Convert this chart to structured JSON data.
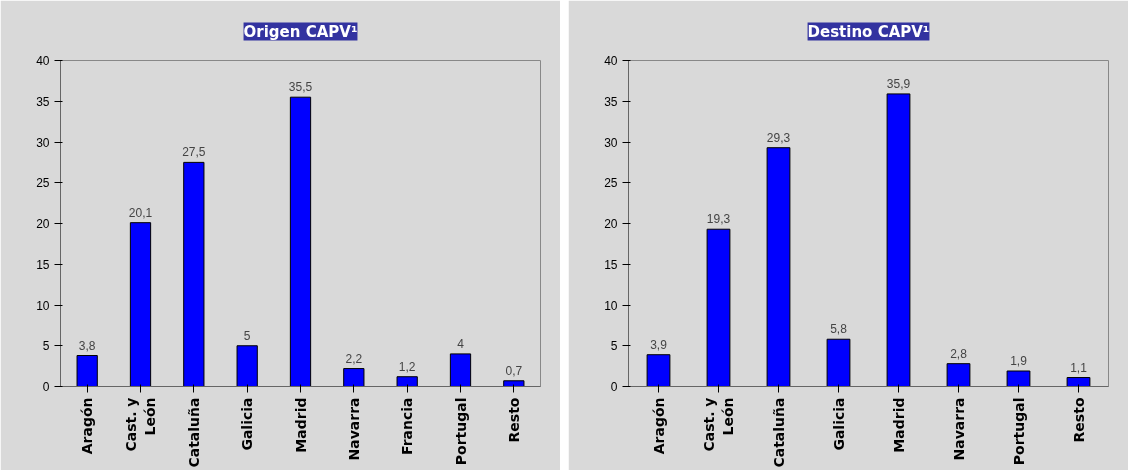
{
  "chart_data": [
    {
      "type": "bar",
      "title": "Origen CAPV¹",
      "categories": [
        "Aragón",
        "Cast. y\nLeón",
        "Cataluña",
        "Galicia",
        "Madrid",
        "Navarra",
        "Francia",
        "Portugal",
        "Resto"
      ],
      "values": [
        3.8,
        20.1,
        27.5,
        5,
        35.5,
        2.2,
        1.2,
        4,
        0.7
      ],
      "value_labels": [
        "3,8",
        "20,1",
        "27,5",
        "5",
        "35,5",
        "2,2",
        "1,2",
        "4",
        "0,7"
      ],
      "color": "#0000ff",
      "ylim": [
        0,
        40
      ],
      "yticks": [
        0,
        5,
        10,
        15,
        20,
        25,
        30,
        35,
        40
      ],
      "grid": false
    },
    {
      "type": "bar",
      "title": "Destino CAPV¹",
      "categories": [
        "Aragón",
        "Cast. y\nLeón",
        "Cataluña",
        "Galicia",
        "Madrid",
        "Navarra",
        "Portugal",
        "Resto"
      ],
      "values": [
        3.9,
        19.3,
        29.3,
        5.8,
        35.9,
        2.8,
        1.9,
        1.1
      ],
      "value_labels": [
        "3,9",
        "19,3",
        "29,3",
        "5,8",
        "35,9",
        "2,8",
        "1,9",
        "1,1"
      ],
      "color": "#0000ff",
      "ylim": [
        0,
        40
      ],
      "yticks": [
        0,
        5,
        10,
        15,
        20,
        25,
        30,
        35,
        40
      ],
      "grid": false
    }
  ]
}
